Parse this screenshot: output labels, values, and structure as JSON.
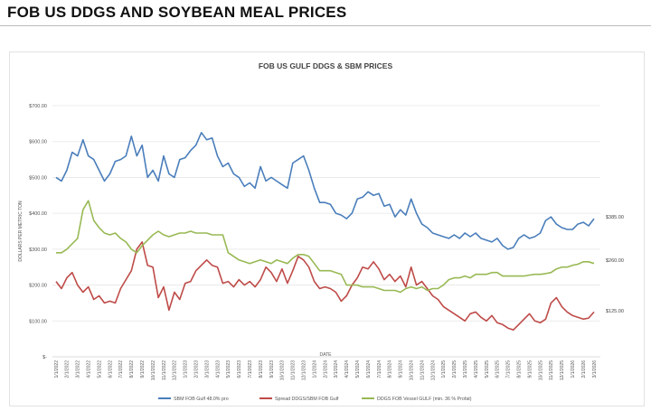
{
  "header": {
    "title": "FOB US DDGS AND SOYBEAN MEAL PRICES"
  },
  "chart_data": {
    "type": "line",
    "title": "FOB US GULF DDGS & SBM PRICES",
    "xlabel": "DATE",
    "ylabel": "DOLLARS PER METRIC TON",
    "ylim": [
      0,
      700
    ],
    "yticks": [
      "$-",
      "$100.00",
      "$200.00",
      "$300.00",
      "$400.00",
      "$500.00",
      "$600.00",
      "$700.00"
    ],
    "grid": true,
    "legend_position": "bottom",
    "x_start": "1/1/2022",
    "x_end": "3/1/2026",
    "x_step": "half-month",
    "xticks": [
      "1/1/2022",
      "2/1/2022",
      "3/1/2022",
      "4/1/2022",
      "5/1/2022",
      "6/1/2022",
      "7/1/2022",
      "8/1/2022",
      "9/1/2022",
      "10/1/2022",
      "11/1/2022",
      "12/1/2022",
      "1/1/2023",
      "2/1/2023",
      "3/1/2023",
      "4/1/2023",
      "5/1/2023",
      "6/1/2023",
      "7/1/2023",
      "8/1/2023",
      "9/1/2023",
      "10/1/2023",
      "11/1/2023",
      "12/1/2023",
      "1/1/2024",
      "2/1/2024",
      "3/1/2024",
      "4/1/2024",
      "5/1/2024",
      "6/1/2024",
      "7/1/2024",
      "8/1/2024",
      "9/1/2024",
      "10/1/2024",
      "11/1/2024",
      "12/1/2024",
      "1/1/2025",
      "2/1/2025",
      "3/1/2025",
      "4/1/2025",
      "5/1/2025",
      "6/1/2025",
      "7/1/2025",
      "8/1/2025",
      "9/1/2025",
      "10/1/2025",
      "11/1/2025",
      "12/1/2025",
      "1/1/2026",
      "2/1/2026",
      "3/1/2026"
    ],
    "series": [
      {
        "name": "SBM FOB Gulf 48.0% pro",
        "color": "#4a7ebb",
        "end_label": "$385.00",
        "values": [
          500,
          490,
          520,
          570,
          560,
          605,
          560,
          550,
          520,
          490,
          510,
          545,
          550,
          560,
          615,
          560,
          590,
          500,
          520,
          490,
          560,
          510,
          500,
          550,
          555,
          575,
          590,
          625,
          605,
          610,
          560,
          530,
          540,
          510,
          500,
          475,
          485,
          470,
          530,
          490,
          500,
          490,
          480,
          470,
          540,
          550,
          560,
          520,
          470,
          430,
          430,
          425,
          400,
          395,
          385,
          400,
          440,
          445,
          460,
          450,
          455,
          420,
          425,
          390,
          410,
          395,
          440,
          400,
          370,
          360,
          345,
          340,
          335,
          330,
          340,
          330,
          345,
          335,
          345,
          330,
          325,
          320,
          330,
          310,
          300,
          305,
          330,
          340,
          330,
          335,
          345,
          380,
          390,
          370,
          360,
          355,
          355,
          370,
          375,
          365,
          385
        ]
      },
      {
        "name": "Spread DDGS/SBM FOB Gulf",
        "color": "#be4b48",
        "end_label": "$125.00",
        "values": [
          210,
          190,
          220,
          235,
          200,
          180,
          195,
          160,
          170,
          150,
          155,
          150,
          190,
          215,
          240,
          300,
          320,
          255,
          250,
          165,
          195,
          130,
          180,
          160,
          205,
          210,
          240,
          255,
          270,
          255,
          250,
          205,
          210,
          195,
          215,
          200,
          210,
          195,
          215,
          250,
          235,
          210,
          245,
          205,
          240,
          280,
          270,
          250,
          210,
          190,
          195,
          190,
          180,
          155,
          170,
          200,
          220,
          250,
          245,
          265,
          245,
          215,
          230,
          210,
          225,
          195,
          250,
          200,
          210,
          190,
          170,
          160,
          140,
          130,
          120,
          110,
          100,
          120,
          125,
          110,
          100,
          115,
          95,
          90,
          80,
          75,
          90,
          105,
          120,
          100,
          95,
          105,
          150,
          165,
          140,
          125,
          115,
          110,
          105,
          108,
          125
        ]
      },
      {
        "name": "DDGS FOB Vessel GULF  (min. 36 % Profat)",
        "color": "#98b954",
        "end_label": "$260.00",
        "values": [
          290,
          290,
          300,
          315,
          330,
          410,
          435,
          380,
          360,
          345,
          340,
          345,
          330,
          320,
          300,
          290,
          310,
          325,
          340,
          350,
          340,
          335,
          340,
          345,
          345,
          350,
          345,
          345,
          345,
          340,
          340,
          340,
          290,
          280,
          270,
          265,
          260,
          265,
          270,
          265,
          260,
          270,
          265,
          260,
          275,
          285,
          285,
          280,
          260,
          240,
          240,
          240,
          235,
          230,
          200,
          200,
          200,
          195,
          195,
          195,
          190,
          185,
          185,
          185,
          180,
          190,
          195,
          190,
          195,
          185,
          190,
          190,
          200,
          215,
          220,
          220,
          225,
          220,
          230,
          230,
          230,
          235,
          235,
          225,
          225,
          225,
          225,
          225,
          228,
          230,
          230,
          232,
          235,
          245,
          250,
          250,
          255,
          258,
          265,
          265,
          260
        ]
      }
    ]
  }
}
